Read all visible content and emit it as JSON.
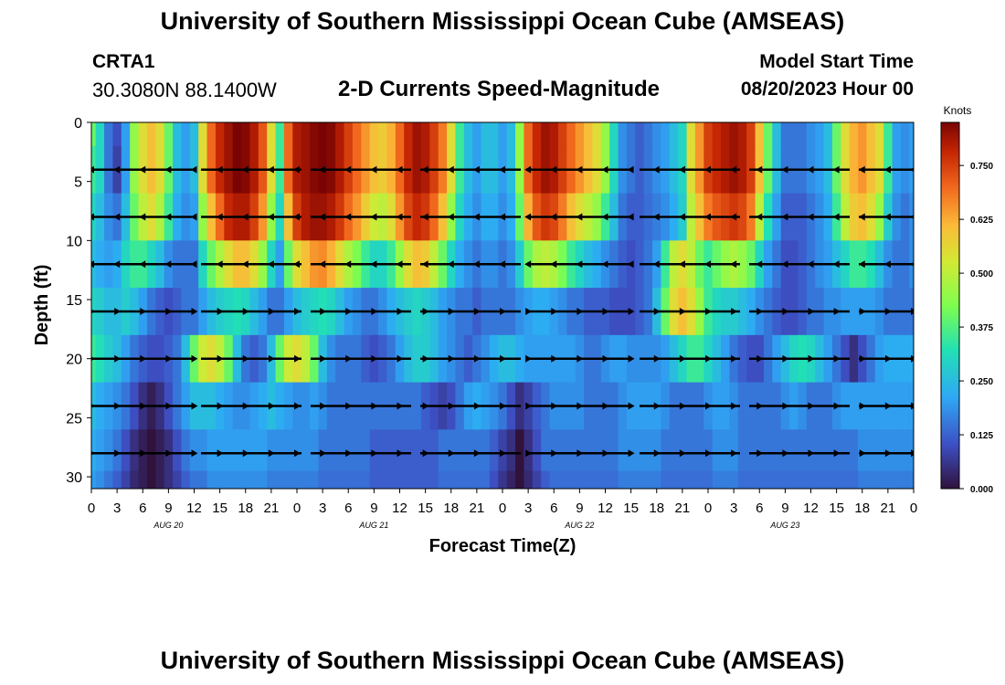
{
  "header": {
    "title": "University of Southern Mississippi Ocean Cube (AMSEAS)",
    "station": "CRTA1",
    "coordinates": "30.3080N  88.1400W",
    "subtitle": "2-D Currents Speed-Magnitude",
    "model_start_label": "Model Start Time",
    "model_start_value": "08/20/2023 Hour 00"
  },
  "footer": {
    "title": "University of Southern Mississippi Ocean Cube (AMSEAS)"
  },
  "chart_data": {
    "type": "heatmap",
    "title": "2-D Currents Speed-Magnitude",
    "xlabel": "Forecast Time(Z)",
    "ylabel": "Depth (ft)",
    "x_hours_range": [
      0,
      96
    ],
    "x_tick_hours": [
      0,
      3,
      6,
      9,
      12,
      15,
      18,
      21,
      24,
      27,
      30,
      33,
      36,
      39,
      42,
      45,
      48,
      51,
      54,
      57,
      60,
      63,
      66,
      69,
      72,
      75,
      78,
      81,
      84,
      87,
      90,
      93,
      96
    ],
    "x_tick_labels": [
      "0",
      "3",
      "6",
      "9",
      "12",
      "15",
      "18",
      "21",
      "0",
      "3",
      "6",
      "9",
      "12",
      "15",
      "18",
      "21",
      "0",
      "3",
      "6",
      "9",
      "12",
      "15",
      "18",
      "21",
      "0",
      "3",
      "6",
      "9",
      "12",
      "15",
      "18",
      "21",
      "0"
    ],
    "date_labels": [
      {
        "hour": 9,
        "text": "AUG 20"
      },
      {
        "hour": 33,
        "text": "AUG 21"
      },
      {
        "hour": 57,
        "text": "AUG 22"
      },
      {
        "hour": 81,
        "text": "AUG 23"
      }
    ],
    "y_range_ft": [
      0,
      31
    ],
    "y_ticks": [
      0,
      5,
      10,
      15,
      20,
      25,
      30
    ],
    "colorbar": {
      "label": "Knots",
      "range": [
        0.0,
        0.85
      ],
      "ticks": [
        0.0,
        0.125,
        0.25,
        0.375,
        0.5,
        0.625,
        0.75
      ],
      "tick_labels": [
        "0.000",
        "0.125",
        "0.250",
        "0.375",
        "0.500",
        "0.625",
        "0.750"
      ]
    },
    "vector_depths_ft": [
      4,
      8,
      12,
      16,
      20,
      24,
      28
    ],
    "speed_profile_hours": [
      0,
      1,
      2,
      3,
      4,
      5,
      6,
      7,
      8,
      9,
      10,
      11,
      12,
      13,
      14,
      15,
      16,
      17,
      18,
      19,
      20,
      21,
      22,
      23,
      24,
      25,
      26,
      27,
      28,
      29,
      30,
      31,
      32,
      33,
      34,
      35,
      36,
      37,
      38,
      39,
      40,
      41,
      42,
      43,
      44,
      45,
      46,
      47,
      48,
      49,
      50,
      51,
      52,
      53,
      54,
      55,
      56,
      57,
      58,
      59,
      60,
      61,
      62,
      63,
      64,
      65,
      66,
      67,
      68,
      69,
      70,
      71,
      72,
      73,
      74,
      75,
      76,
      77,
      78,
      79,
      80,
      81,
      82,
      83,
      84,
      85,
      86,
      87,
      88,
      89,
      90,
      91,
      92,
      93,
      94,
      95,
      96
    ],
    "speed_profile_depths_ft": [
      0,
      4,
      8,
      12,
      16,
      20,
      24,
      28,
      31
    ],
    "speed_knots": [
      [
        0.4,
        0.3,
        0.15,
        0.1,
        0.2,
        0.45,
        0.55,
        0.6,
        0.55,
        0.4,
        0.25,
        0.2,
        0.25,
        0.55,
        0.7,
        0.78,
        0.82,
        0.85,
        0.84,
        0.8,
        0.72,
        0.55,
        0.35,
        0.7,
        0.8,
        0.82,
        0.84,
        0.85,
        0.84,
        0.8,
        0.75,
        0.7,
        0.65,
        0.6,
        0.58,
        0.62,
        0.7,
        0.78,
        0.82,
        0.8,
        0.75,
        0.68,
        0.55,
        0.35,
        0.25,
        0.2,
        0.25,
        0.25,
        0.2,
        0.25,
        0.45,
        0.7,
        0.78,
        0.82,
        0.8,
        0.75,
        0.7,
        0.65,
        0.6,
        0.55,
        0.45,
        0.3,
        0.18,
        0.15,
        0.12,
        0.15,
        0.18,
        0.2,
        0.25,
        0.3,
        0.55,
        0.65,
        0.75,
        0.78,
        0.8,
        0.82,
        0.8,
        0.75,
        0.6,
        0.4,
        0.25,
        0.15,
        0.15,
        0.15,
        0.18,
        0.2,
        0.25,
        0.4,
        0.55,
        0.62,
        0.65,
        0.6,
        0.55,
        0.35,
        0.2,
        0.18,
        0.2
      ],
      [
        0.35,
        0.3,
        0.15,
        0.08,
        0.2,
        0.45,
        0.55,
        0.6,
        0.55,
        0.4,
        0.25,
        0.2,
        0.25,
        0.55,
        0.7,
        0.78,
        0.82,
        0.85,
        0.84,
        0.8,
        0.72,
        0.55,
        0.35,
        0.7,
        0.8,
        0.82,
        0.84,
        0.85,
        0.84,
        0.8,
        0.75,
        0.7,
        0.65,
        0.6,
        0.58,
        0.62,
        0.7,
        0.78,
        0.82,
        0.8,
        0.75,
        0.68,
        0.55,
        0.35,
        0.25,
        0.2,
        0.25,
        0.25,
        0.2,
        0.25,
        0.45,
        0.7,
        0.78,
        0.82,
        0.8,
        0.75,
        0.7,
        0.65,
        0.6,
        0.55,
        0.45,
        0.3,
        0.18,
        0.15,
        0.12,
        0.15,
        0.18,
        0.2,
        0.25,
        0.3,
        0.55,
        0.65,
        0.75,
        0.78,
        0.8,
        0.82,
        0.8,
        0.75,
        0.6,
        0.4,
        0.25,
        0.15,
        0.15,
        0.15,
        0.18,
        0.2,
        0.25,
        0.4,
        0.55,
        0.62,
        0.65,
        0.6,
        0.55,
        0.35,
        0.2,
        0.18,
        0.2
      ],
      [
        0.3,
        0.25,
        0.18,
        0.15,
        0.25,
        0.4,
        0.5,
        0.55,
        0.48,
        0.35,
        0.22,
        0.18,
        0.2,
        0.45,
        0.6,
        0.7,
        0.78,
        0.8,
        0.8,
        0.75,
        0.65,
        0.45,
        0.3,
        0.6,
        0.75,
        0.8,
        0.82,
        0.82,
        0.8,
        0.76,
        0.7,
        0.65,
        0.58,
        0.52,
        0.5,
        0.55,
        0.65,
        0.74,
        0.78,
        0.76,
        0.7,
        0.6,
        0.45,
        0.3,
        0.22,
        0.18,
        0.22,
        0.22,
        0.18,
        0.22,
        0.4,
        0.62,
        0.72,
        0.76,
        0.74,
        0.68,
        0.6,
        0.55,
        0.5,
        0.45,
        0.35,
        0.25,
        0.15,
        0.12,
        0.12,
        0.14,
        0.16,
        0.18,
        0.22,
        0.28,
        0.5,
        0.6,
        0.68,
        0.72,
        0.74,
        0.76,
        0.74,
        0.68,
        0.5,
        0.32,
        0.2,
        0.12,
        0.12,
        0.12,
        0.15,
        0.18,
        0.22,
        0.35,
        0.5,
        0.58,
        0.6,
        0.55,
        0.45,
        0.28,
        0.18,
        0.15,
        0.18
      ],
      [
        0.25,
        0.22,
        0.2,
        0.22,
        0.3,
        0.35,
        0.35,
        0.3,
        0.25,
        0.18,
        0.15,
        0.15,
        0.15,
        0.3,
        0.4,
        0.48,
        0.55,
        0.6,
        0.6,
        0.55,
        0.45,
        0.3,
        0.2,
        0.4,
        0.55,
        0.6,
        0.65,
        0.66,
        0.62,
        0.55,
        0.48,
        0.42,
        0.35,
        0.3,
        0.3,
        0.35,
        0.45,
        0.55,
        0.6,
        0.58,
        0.5,
        0.4,
        0.3,
        0.22,
        0.18,
        0.15,
        0.18,
        0.18,
        0.15,
        0.18,
        0.28,
        0.4,
        0.48,
        0.5,
        0.48,
        0.42,
        0.35,
        0.3,
        0.25,
        0.22,
        0.18,
        0.15,
        0.12,
        0.1,
        0.12,
        0.15,
        0.2,
        0.35,
        0.5,
        0.55,
        0.5,
        0.4,
        0.35,
        0.4,
        0.45,
        0.48,
        0.45,
        0.4,
        0.3,
        0.2,
        0.15,
        0.1,
        0.1,
        0.12,
        0.15,
        0.18,
        0.2,
        0.25,
        0.3,
        0.35,
        0.35,
        0.32,
        0.25,
        0.18,
        0.15,
        0.15,
        0.18
      ],
      [
        0.3,
        0.28,
        0.25,
        0.25,
        0.28,
        0.25,
        0.2,
        0.15,
        0.12,
        0.1,
        0.12,
        0.15,
        0.15,
        0.2,
        0.25,
        0.28,
        0.3,
        0.32,
        0.3,
        0.25,
        0.2,
        0.15,
        0.15,
        0.2,
        0.25,
        0.28,
        0.3,
        0.32,
        0.3,
        0.25,
        0.2,
        0.18,
        0.15,
        0.15,
        0.18,
        0.22,
        0.25,
        0.28,
        0.3,
        0.28,
        0.25,
        0.2,
        0.18,
        0.15,
        0.15,
        0.12,
        0.15,
        0.15,
        0.15,
        0.15,
        0.18,
        0.2,
        0.22,
        0.22,
        0.2,
        0.18,
        0.15,
        0.15,
        0.12,
        0.12,
        0.12,
        0.1,
        0.1,
        0.1,
        0.12,
        0.15,
        0.25,
        0.4,
        0.55,
        0.6,
        0.55,
        0.45,
        0.35,
        0.3,
        0.28,
        0.28,
        0.25,
        0.22,
        0.18,
        0.15,
        0.12,
        0.1,
        0.1,
        0.12,
        0.15,
        0.15,
        0.18,
        0.18,
        0.2,
        0.2,
        0.2,
        0.2,
        0.18,
        0.15,
        0.15,
        0.15,
        0.15
      ],
      [
        0.35,
        0.32,
        0.28,
        0.25,
        0.2,
        0.15,
        0.12,
        0.1,
        0.1,
        0.12,
        0.15,
        0.25,
        0.4,
        0.52,
        0.55,
        0.5,
        0.4,
        0.25,
        0.15,
        0.12,
        0.15,
        0.25,
        0.4,
        0.52,
        0.55,
        0.5,
        0.4,
        0.25,
        0.18,
        0.15,
        0.15,
        0.15,
        0.12,
        0.1,
        0.12,
        0.15,
        0.2,
        0.25,
        0.28,
        0.28,
        0.25,
        0.2,
        0.18,
        0.15,
        0.12,
        0.15,
        0.18,
        0.22,
        0.25,
        0.25,
        0.22,
        0.2,
        0.2,
        0.2,
        0.2,
        0.2,
        0.2,
        0.18,
        0.15,
        0.15,
        0.18,
        0.2,
        0.2,
        0.18,
        0.18,
        0.18,
        0.18,
        0.2,
        0.25,
        0.3,
        0.35,
        0.35,
        0.3,
        0.25,
        0.2,
        0.15,
        0.12,
        0.1,
        0.1,
        0.15,
        0.2,
        0.25,
        0.3,
        0.32,
        0.3,
        0.25,
        0.2,
        0.15,
        0.1,
        0.05,
        0.1,
        0.15,
        0.2,
        0.22,
        0.22,
        0.22,
        0.22
      ],
      [
        0.25,
        0.22,
        0.2,
        0.18,
        0.15,
        0.1,
        0.05,
        0.02,
        0.05,
        0.1,
        0.15,
        0.2,
        0.25,
        0.25,
        0.25,
        0.22,
        0.2,
        0.18,
        0.18,
        0.2,
        0.22,
        0.25,
        0.22,
        0.2,
        0.18,
        0.18,
        0.2,
        0.18,
        0.15,
        0.15,
        0.15,
        0.15,
        0.15,
        0.15,
        0.15,
        0.15,
        0.15,
        0.15,
        0.15,
        0.12,
        0.1,
        0.08,
        0.1,
        0.15,
        0.2,
        0.22,
        0.2,
        0.18,
        0.15,
        0.1,
        0.05,
        0.08,
        0.12,
        0.15,
        0.18,
        0.18,
        0.18,
        0.18,
        0.15,
        0.15,
        0.15,
        0.15,
        0.18,
        0.2,
        0.2,
        0.2,
        0.2,
        0.18,
        0.15,
        0.15,
        0.15,
        0.15,
        0.18,
        0.2,
        0.2,
        0.18,
        0.15,
        0.15,
        0.15,
        0.15,
        0.15,
        0.18,
        0.2,
        0.18,
        0.15,
        0.15,
        0.15,
        0.18,
        0.2,
        0.2,
        0.2,
        0.2,
        0.2,
        0.2,
        0.2,
        0.2,
        0.2
      ],
      [
        0.22,
        0.2,
        0.18,
        0.15,
        0.1,
        0.05,
        0.02,
        0.0,
        0.02,
        0.05,
        0.1,
        0.15,
        0.18,
        0.18,
        0.2,
        0.2,
        0.2,
        0.2,
        0.2,
        0.2,
        0.2,
        0.18,
        0.18,
        0.18,
        0.18,
        0.18,
        0.18,
        0.15,
        0.15,
        0.15,
        0.15,
        0.15,
        0.15,
        0.12,
        0.12,
        0.12,
        0.12,
        0.12,
        0.12,
        0.12,
        0.12,
        0.15,
        0.15,
        0.15,
        0.15,
        0.15,
        0.15,
        0.12,
        0.08,
        0.05,
        0.0,
        0.05,
        0.1,
        0.15,
        0.15,
        0.15,
        0.15,
        0.15,
        0.15,
        0.15,
        0.15,
        0.15,
        0.18,
        0.18,
        0.18,
        0.18,
        0.18,
        0.15,
        0.15,
        0.15,
        0.15,
        0.15,
        0.15,
        0.18,
        0.18,
        0.18,
        0.15,
        0.15,
        0.15,
        0.15,
        0.15,
        0.15,
        0.15,
        0.15,
        0.15,
        0.15,
        0.15,
        0.15,
        0.15,
        0.15,
        0.18,
        0.18,
        0.18,
        0.18,
        0.18,
        0.18,
        0.18
      ],
      [
        0.2,
        0.18,
        0.15,
        0.12,
        0.08,
        0.04,
        0.02,
        0.0,
        0.02,
        0.05,
        0.08,
        0.12,
        0.15,
        0.15,
        0.18,
        0.18,
        0.18,
        0.18,
        0.18,
        0.18,
        0.18,
        0.16,
        0.16,
        0.16,
        0.16,
        0.16,
        0.16,
        0.14,
        0.14,
        0.14,
        0.14,
        0.14,
        0.14,
        0.12,
        0.12,
        0.12,
        0.12,
        0.12,
        0.12,
        0.12,
        0.12,
        0.14,
        0.14,
        0.14,
        0.14,
        0.14,
        0.14,
        0.1,
        0.06,
        0.03,
        0.0,
        0.04,
        0.08,
        0.12,
        0.14,
        0.14,
        0.14,
        0.14,
        0.14,
        0.14,
        0.14,
        0.14,
        0.16,
        0.16,
        0.16,
        0.16,
        0.16,
        0.14,
        0.14,
        0.14,
        0.14,
        0.14,
        0.14,
        0.16,
        0.16,
        0.16,
        0.14,
        0.14,
        0.14,
        0.14,
        0.14,
        0.14,
        0.14,
        0.14,
        0.14,
        0.14,
        0.14,
        0.14,
        0.14,
        0.14,
        0.16,
        0.16,
        0.16,
        0.16,
        0.16,
        0.16,
        0.16
      ]
    ]
  }
}
